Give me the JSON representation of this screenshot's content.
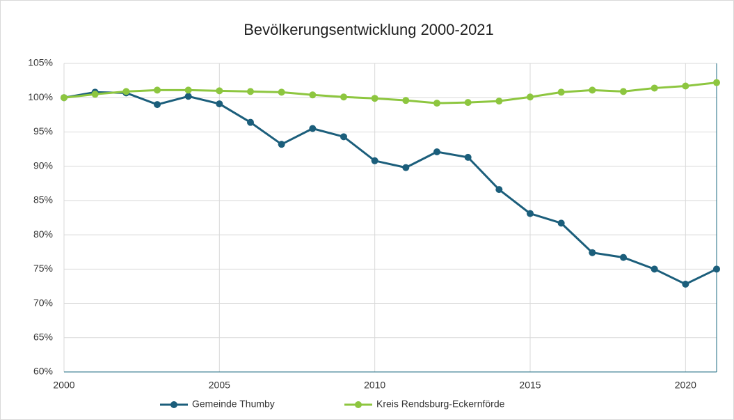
{
  "chart_data": {
    "type": "line",
    "title": "Bevölkerungsentwicklung 2000-2021",
    "x": [
      2000,
      2001,
      2002,
      2003,
      2004,
      2005,
      2006,
      2007,
      2008,
      2009,
      2010,
      2011,
      2012,
      2013,
      2014,
      2015,
      2016,
      2017,
      2018,
      2019,
      2020,
      2021
    ],
    "series": [
      {
        "name": "Gemeinde Thumby",
        "color": "#1b5e7b",
        "values": [
          100,
          100.8,
          100.7,
          99.0,
          100.2,
          99.1,
          96.4,
          93.2,
          95.5,
          94.3,
          90.8,
          89.8,
          92.1,
          91.3,
          86.6,
          83.1,
          81.7,
          77.4,
          76.7,
          75.0,
          72.8,
          75.0
        ]
      },
      {
        "name": "Kreis Rendsburg-Eckernförde",
        "color": "#8dc63f",
        "values": [
          100,
          100.5,
          100.9,
          101.1,
          101.1,
          101.0,
          100.9,
          100.8,
          100.4,
          100.1,
          99.9,
          99.6,
          99.2,
          99.3,
          99.5,
          100.1,
          100.8,
          101.1,
          100.9,
          101.4,
          101.7,
          102.2
        ]
      }
    ],
    "xlim": [
      2000,
      2021
    ],
    "xticks": [
      2000,
      2005,
      2010,
      2015,
      2020
    ],
    "ylim": [
      60,
      105
    ],
    "yticks": [
      {
        "value": 60,
        "label": "60%"
      },
      {
        "value": 65,
        "label": "65%"
      },
      {
        "value": 70,
        "label": "70%"
      },
      {
        "value": 75,
        "label": "75%"
      },
      {
        "value": 80,
        "label": "80%"
      },
      {
        "value": 85,
        "label": "85%"
      },
      {
        "value": 90,
        "label": "90%"
      },
      {
        "value": 95,
        "label": "95%"
      },
      {
        "value": 100,
        "label": "100%"
      },
      {
        "value": 105,
        "label": "105%"
      }
    ],
    "grid": true,
    "legend": "bottom"
  }
}
